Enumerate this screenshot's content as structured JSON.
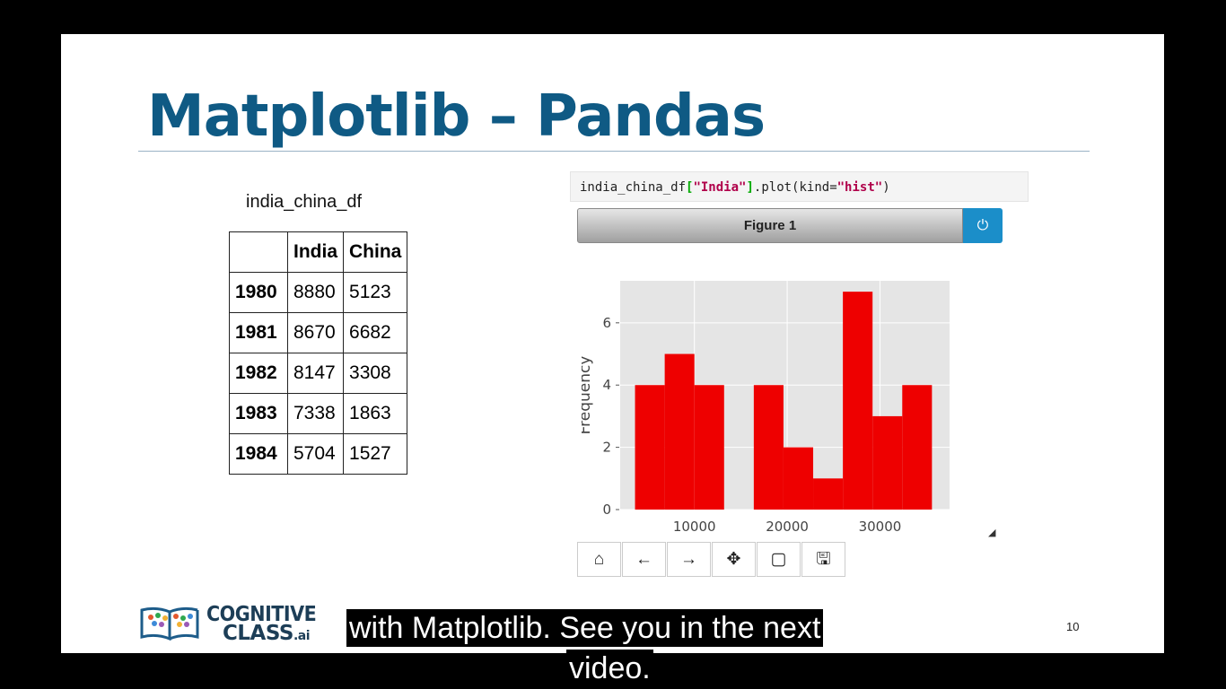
{
  "slide": {
    "title": "Matplotlib – Pandas",
    "df_label": "india_china_df",
    "page_number": "10"
  },
  "table": {
    "columns": [
      "",
      "India",
      "China"
    ],
    "rows": [
      {
        "year": "1980",
        "india": "8880",
        "china": "5123"
      },
      {
        "year": "1981",
        "india": "8670",
        "china": "6682"
      },
      {
        "year": "1982",
        "india": "8147",
        "china": "3308"
      },
      {
        "year": "1983",
        "india": "7338",
        "china": "1863"
      },
      {
        "year": "1984",
        "india": "5704",
        "china": "1527"
      }
    ]
  },
  "code": {
    "prefix": "india_china_df",
    "open_bracket": "[",
    "key": "\"India\"",
    "close_bracket": "]",
    "method": ".plot(kind=",
    "arg": "\"hist\"",
    "suffix": ")"
  },
  "figure": {
    "title": "Figure 1",
    "power_icon": "power-icon",
    "toolbar": [
      "home-icon",
      "back-arrow-icon",
      "forward-arrow-icon",
      "pan-icon",
      "zoom-rect-icon",
      "save-icon"
    ]
  },
  "chart_data": {
    "type": "bar",
    "title": "",
    "xlabel": "",
    "ylabel": "Frequency",
    "bins": [
      {
        "x0": 3600,
        "x1": 6800,
        "count": 4
      },
      {
        "x0": 6800,
        "x1": 10000,
        "count": 5
      },
      {
        "x0": 10000,
        "x1": 13200,
        "count": 4
      },
      {
        "x0": 13200,
        "x1": 16400,
        "count": 0
      },
      {
        "x0": 16400,
        "x1": 19600,
        "count": 4
      },
      {
        "x0": 19600,
        "x1": 22800,
        "count": 2
      },
      {
        "x0": 22800,
        "x1": 26000,
        "count": 1
      },
      {
        "x0": 26000,
        "x1": 29200,
        "count": 7
      },
      {
        "x0": 29200,
        "x1": 32400,
        "count": 3
      },
      {
        "x0": 32400,
        "x1": 35600,
        "count": 4
      }
    ],
    "xlim": [
      2000,
      37500
    ],
    "ylim": [
      0,
      7.35
    ],
    "xticks": [
      10000,
      20000,
      30000
    ],
    "yticks": [
      0,
      2,
      4,
      6
    ],
    "bar_color": "#ee0000",
    "background": "#e5e5e5",
    "grid": true
  },
  "logo": {
    "line1": "COGNITIVE",
    "line2": "CLASS",
    "suffix": ".ai"
  },
  "subtitles": {
    "line1": "with Matplotlib. See you in the next",
    "line2": "video."
  }
}
